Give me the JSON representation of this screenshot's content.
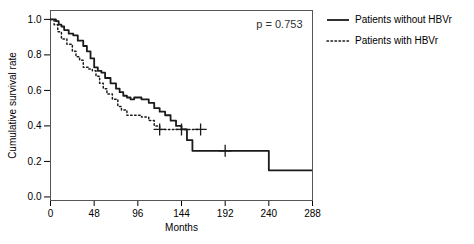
{
  "chart_data": {
    "type": "line",
    "xlabel": "Months",
    "ylabel": "Cumulative survival rate",
    "xlim": [
      0,
      288
    ],
    "ylim": [
      -0.02,
      1.05
    ],
    "xticks": [
      0,
      48,
      96,
      144,
      192,
      240,
      288
    ],
    "yticks": [
      {
        "value": 0.0,
        "label": "0.0"
      },
      0.2,
      0.4,
      0.6,
      0.8,
      {
        "value": 1.0,
        "label": "1.0"
      }
    ],
    "annotation": "p = 0.753",
    "grid": false,
    "legend": "right",
    "series": [
      {
        "name": "Patients without HBVr",
        "color": "#1a1a1a",
        "line_style": "solid",
        "marker": "plus",
        "x": [
          0,
          3,
          6,
          9,
          12,
          15,
          20,
          25,
          30,
          36,
          40,
          44,
          48,
          52,
          56,
          60,
          66,
          72,
          76,
          80,
          84,
          88,
          92,
          96,
          100,
          108,
          114,
          120,
          126,
          132,
          138,
          144,
          150,
          156,
          168,
          180,
          192,
          228,
          240,
          288
        ],
        "values": [
          1.0,
          1.0,
          0.99,
          0.97,
          0.96,
          0.94,
          0.92,
          0.91,
          0.88,
          0.85,
          0.82,
          0.78,
          0.73,
          0.71,
          0.7,
          0.67,
          0.64,
          0.61,
          0.59,
          0.57,
          0.56,
          0.55,
          0.56,
          0.56,
          0.55,
          0.53,
          0.5,
          0.48,
          0.46,
          0.43,
          0.4,
          0.38,
          0.32,
          0.26,
          0.26,
          0.26,
          0.26,
          0.26,
          0.15,
          0.15
        ],
        "censored": {
          "x": [
            144,
            192
          ],
          "values": [
            0.38,
            0.26
          ]
        }
      },
      {
        "name": "Patients with HBVr",
        "color": "#1a1a1a",
        "line_style": "dotted",
        "marker": "plus",
        "x": [
          0,
          4,
          8,
          12,
          18,
          24,
          28,
          32,
          36,
          42,
          46,
          50,
          54,
          58,
          62,
          68,
          74,
          78,
          84,
          88,
          92,
          96,
          100,
          108,
          114,
          120,
          130,
          144,
          165
        ],
        "values": [
          1.0,
          0.97,
          0.93,
          0.89,
          0.86,
          0.82,
          0.79,
          0.77,
          0.73,
          0.72,
          0.71,
          0.68,
          0.64,
          0.61,
          0.58,
          0.55,
          0.51,
          0.49,
          0.46,
          0.46,
          0.46,
          0.46,
          0.45,
          0.43,
          0.4,
          0.38,
          0.38,
          0.38,
          0.38
        ],
        "censored": {
          "x": [
            120,
            165
          ],
          "values": [
            0.38,
            0.38
          ]
        }
      }
    ]
  }
}
